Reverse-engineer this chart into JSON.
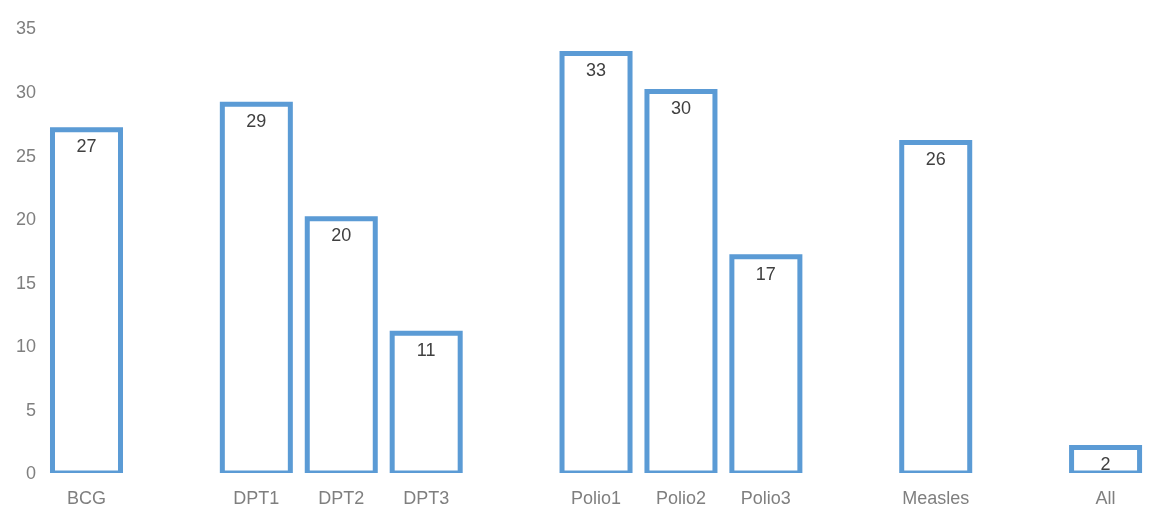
{
  "chart_data": {
    "type": "bar",
    "categories": [
      "BCG",
      null,
      "DPT1",
      "DPT2",
      "DPT3",
      null,
      "Polio1",
      "Polio2",
      "Polio3",
      null,
      "Measles",
      null,
      "All"
    ],
    "values": [
      27,
      null,
      29,
      20,
      11,
      null,
      33,
      30,
      17,
      null,
      26,
      null,
      2
    ],
    "color": "#5b9bd5",
    "ylim": [
      0,
      35
    ],
    "yticks": [
      0,
      5,
      10,
      15,
      20,
      25,
      30,
      35
    ],
    "data_labels": true
  }
}
